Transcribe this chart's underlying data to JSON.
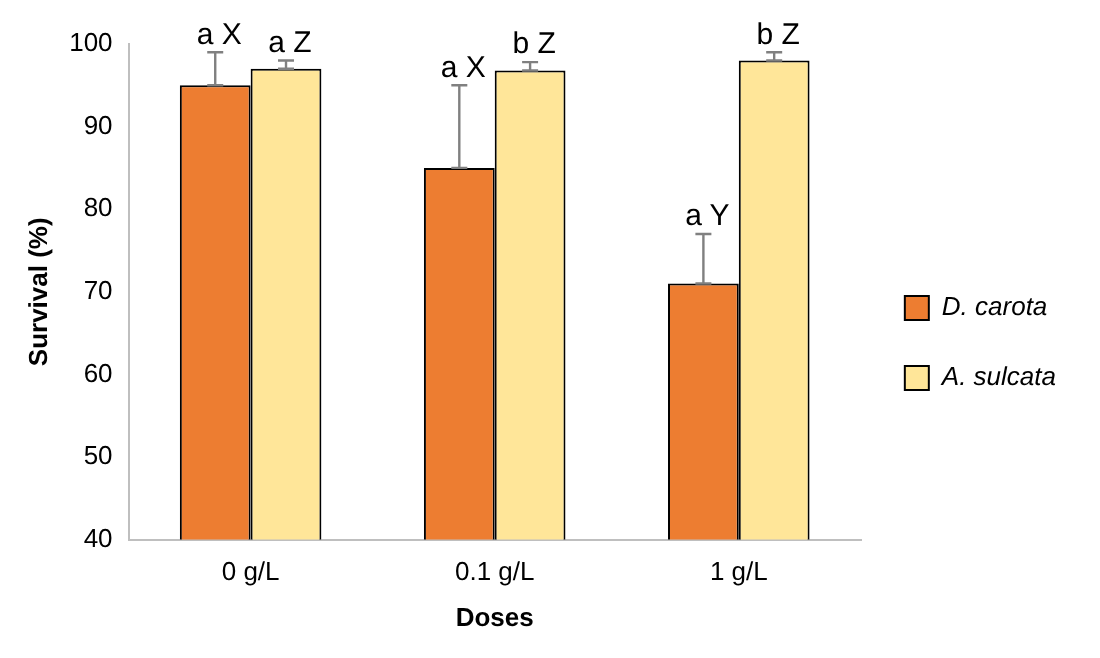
{
  "chart_data": {
    "type": "bar",
    "xlabel": "Doses",
    "ylabel": "Survival (%)",
    "categories": [
      "0 g/L",
      "0.1 g/L",
      "1 g/L"
    ],
    "series": [
      {
        "name": "D. carota",
        "color": "#ed7d31",
        "values": [
          95,
          85,
          71
        ],
        "errors": [
          [
            95,
            99
          ],
          [
            85,
            95
          ],
          [
            71,
            77
          ]
        ],
        "value_labels": [
          "a X",
          "a X",
          "a Y"
        ]
      },
      {
        "name": "A. sulcata",
        "color": "#ffe699",
        "values": [
          97,
          96.8,
          98
        ],
        "errors": [
          [
            97,
            98
          ],
          [
            96.8,
            97.8
          ],
          [
            98,
            99
          ]
        ],
        "value_labels": [
          "a Z",
          "b Z",
          "b Z"
        ]
      }
    ],
    "ylim": [
      40,
      100
    ],
    "yticks": [
      40,
      50,
      60,
      70,
      80,
      90,
      100
    ],
    "grid": false,
    "legend": "right"
  }
}
